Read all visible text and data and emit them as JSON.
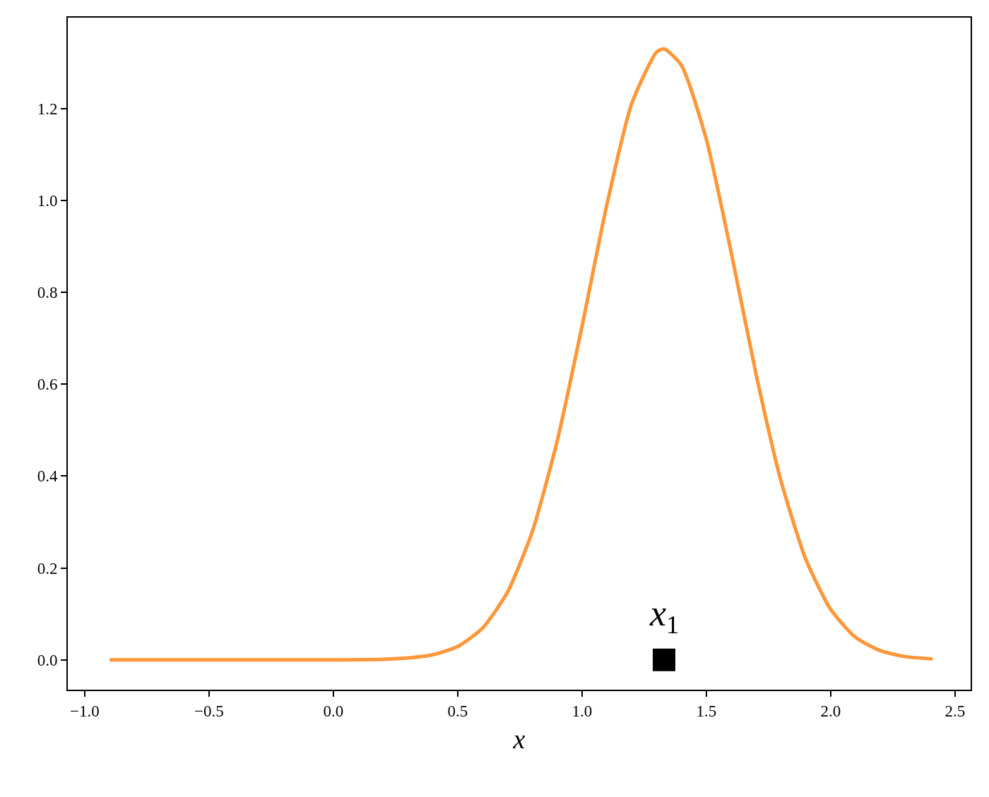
{
  "chart_data": {
    "type": "line",
    "xlabel": "x",
    "x": [
      -0.9,
      -0.5,
      0.0,
      0.2,
      0.3,
      0.4,
      0.5,
      0.6,
      0.7,
      0.8,
      0.9,
      1.0,
      1.1,
      1.2,
      1.3,
      1.33,
      1.4,
      1.5,
      1.6,
      1.7,
      1.8,
      1.9,
      2.0,
      2.1,
      2.2,
      2.3,
      2.41
    ],
    "series": [
      {
        "color": "#ff9638",
        "values": [
          0.0,
          0.0,
          0.0,
          0.001,
          0.004,
          0.011,
          0.029,
          0.069,
          0.147,
          0.279,
          0.476,
          0.726,
          0.991,
          1.211,
          1.323,
          1.33,
          1.294,
          1.133,
          0.887,
          0.622,
          0.39,
          0.219,
          0.11,
          0.049,
          0.02,
          0.007,
          0.002
        ]
      },
      {
        "type": "scatter",
        "marker": "square",
        "color": "#000000",
        "x": [
          1.33
        ],
        "values": [
          0.0
        ]
      }
    ],
    "annotations": [
      {
        "text": "x$_{1}$",
        "x": 1.33,
        "y": 0.0
      }
    ],
    "xlim": [
      -1.068,
      2.563
    ],
    "ylim": [
      -0.065,
      1.398
    ],
    "xticks": [
      {
        "value": -1.0,
        "label": "−1.0"
      },
      {
        "value": -0.5,
        "label": "−0.5"
      },
      {
        "value": 0.0,
        "label": "0.0"
      },
      {
        "value": 0.5,
        "label": "0.5"
      },
      {
        "value": 1.0,
        "label": "1.0"
      },
      {
        "value": 1.5,
        "label": "1.5"
      },
      {
        "value": 2.0,
        "label": "2.0"
      },
      {
        "value": 2.5,
        "label": "2.5"
      }
    ],
    "yticks": [
      {
        "value": 0.0,
        "label": "0.0"
      },
      {
        "value": 0.2,
        "label": "0.2"
      },
      {
        "value": 0.4,
        "label": "0.4"
      },
      {
        "value": 0.6,
        "label": "0.6"
      },
      {
        "value": 0.8,
        "label": "0.8"
      },
      {
        "value": 1.0,
        "label": "1.0"
      },
      {
        "value": 1.2,
        "label": "1.2"
      }
    ]
  }
}
